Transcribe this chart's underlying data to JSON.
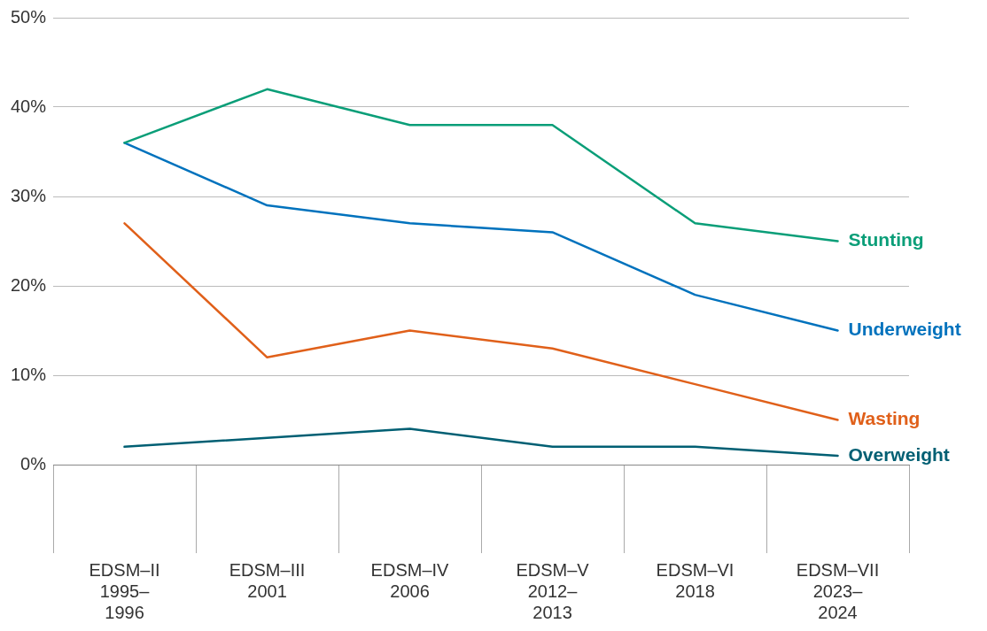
{
  "chart_data": {
    "type": "line",
    "categories": [
      "EDSM–II 1995–1996",
      "EDSM–III 2001",
      "EDSM–IV 2006",
      "EDSM–V 2012–2013",
      "EDSM–VI 2018",
      "EDSM–VII 2023–2024"
    ],
    "series": [
      {
        "name": "Stunting",
        "color": "#0a9e78",
        "values": [
          36,
          42,
          38,
          38,
          27,
          25
        ]
      },
      {
        "name": "Underweight",
        "color": "#0072bd",
        "values": [
          36,
          29,
          27,
          26,
          19,
          15
        ]
      },
      {
        "name": "Wasting",
        "color": "#e0601a",
        "values": [
          27,
          12,
          15,
          13,
          9,
          5
        ]
      },
      {
        "name": "Overweight",
        "color": "#005f73",
        "values": [
          2,
          3,
          4,
          2,
          2,
          1
        ]
      }
    ],
    "ylim": [
      0,
      50
    ],
    "yticks": [
      {
        "value": 0,
        "label": "0%"
      },
      {
        "value": 10,
        "label": "10%"
      },
      {
        "value": 20,
        "label": "20%"
      },
      {
        "value": 30,
        "label": "30%"
      },
      {
        "value": 40,
        "label": "40%"
      },
      {
        "value": 50,
        "label": "50%"
      }
    ],
    "grid": "y",
    "legend": false,
    "marker": "none",
    "line_style": "solid"
  }
}
